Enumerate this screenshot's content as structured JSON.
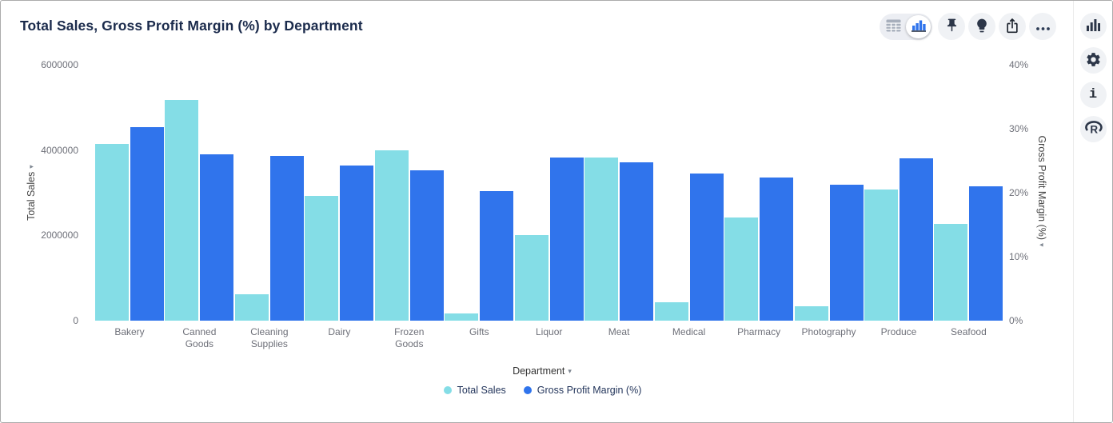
{
  "header": {
    "title": "Total Sales, Gross Profit Margin (%) by Department"
  },
  "toolbar": {
    "buttons": [
      {
        "icon": "table-view-icon",
        "selected": false
      },
      {
        "icon": "bar-chart-view-icon",
        "selected": true
      },
      {
        "icon": "pin-icon"
      },
      {
        "icon": "lightbulb-icon"
      },
      {
        "icon": "share-export-icon"
      },
      {
        "icon": "more-options-icon"
      }
    ]
  },
  "sidebar": {
    "buttons": [
      {
        "icon": "bar-chart-icon"
      },
      {
        "icon": "settings-gear-icon"
      },
      {
        "icon": "info-icon"
      },
      {
        "icon": "r-logo-icon"
      }
    ]
  },
  "colors": {
    "total_sales": "#84dde6",
    "gross_profit_margin": "#3074ec",
    "title_text": "#1b2b4c",
    "axis_text": "#6e7079",
    "icon_dark": "#2c3648"
  },
  "chart_data": {
    "type": "bar",
    "title": "Total Sales, Gross Profit Margin (%) by Department",
    "categories": [
      "Bakery",
      "Canned Goods",
      "Cleaning Supplies",
      "Dairy",
      "Frozen Goods",
      "Gifts",
      "Liquor",
      "Meat",
      "Medical",
      "Pharmacy",
      "Photography",
      "Produce",
      "Seafood"
    ],
    "series": [
      {
        "name": "Total Sales",
        "axis": "left",
        "color": "#84dde6",
        "values": [
          4150000,
          5180000,
          620000,
          2930000,
          4000000,
          170000,
          2000000,
          3830000,
          440000,
          2420000,
          330000,
          3080000,
          2270000
        ]
      },
      {
        "name": "Gross Profit Margin (%)",
        "axis": "right",
        "color": "#3074ec",
        "values": [
          30.2,
          26.0,
          25.8,
          24.3,
          23.5,
          20.2,
          25.5,
          24.8,
          23.0,
          22.4,
          21.2,
          25.4,
          21.0
        ]
      }
    ],
    "left_axis": {
      "label": "Total Sales",
      "ticks": [
        "0",
        "2000000",
        "4000000",
        "6000000"
      ],
      "range": [
        0,
        6000000
      ]
    },
    "right_axis": {
      "label": "Gross Profit Margin (%)",
      "ticks": [
        "0%",
        "10%",
        "20%",
        "30%",
        "40%"
      ],
      "range": [
        0,
        40
      ]
    },
    "xlabel": "Department",
    "legend": [
      "Total Sales",
      "Gross Profit Margin (%)"
    ],
    "legend_position": "bottom",
    "grid": false
  }
}
